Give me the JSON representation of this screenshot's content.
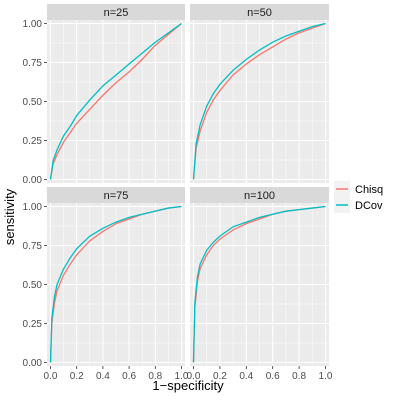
{
  "chart_data": {
    "type": "line",
    "xlabel": "1−specificity",
    "ylabel": "sensitivity",
    "xlim": [
      0,
      1
    ],
    "ylim": [
      0,
      1
    ],
    "x_ticks": [
      "0.0",
      "0.2",
      "0.4",
      "0.6",
      "0.8",
      "1.0"
    ],
    "y_ticks": [
      "0.00",
      "0.25",
      "0.50",
      "0.75",
      "1.00"
    ],
    "grid": true,
    "legend_position": "right",
    "legend": [
      {
        "name": "Chisq",
        "color": "#F8766D"
      },
      {
        "name": "DCov",
        "color": "#00BFC4"
      }
    ],
    "panels": [
      {
        "strip": "n=25",
        "series": [
          {
            "name": "Chisq",
            "x": [
              0,
              0.02,
              0.05,
              0.1,
              0.15,
              0.2,
              0.3,
              0.4,
              0.5,
              0.6,
              0.7,
              0.8,
              0.9,
              1.0
            ],
            "y": [
              0,
              0.1,
              0.16,
              0.24,
              0.3,
              0.36,
              0.45,
              0.54,
              0.62,
              0.69,
              0.77,
              0.86,
              0.93,
              1.0
            ]
          },
          {
            "name": "DCov",
            "x": [
              0,
              0.02,
              0.05,
              0.1,
              0.15,
              0.2,
              0.3,
              0.4,
              0.5,
              0.6,
              0.7,
              0.8,
              0.9,
              1.0
            ],
            "y": [
              0,
              0.12,
              0.19,
              0.28,
              0.34,
              0.41,
              0.51,
              0.6,
              0.67,
              0.74,
              0.81,
              0.88,
              0.94,
              1.0
            ]
          }
        ]
      },
      {
        "strip": "n=50",
        "series": [
          {
            "name": "Chisq",
            "x": [
              0,
              0.02,
              0.05,
              0.1,
              0.15,
              0.2,
              0.3,
              0.4,
              0.5,
              0.6,
              0.7,
              0.8,
              0.9,
              1.0
            ],
            "y": [
              0,
              0.2,
              0.31,
              0.43,
              0.51,
              0.57,
              0.67,
              0.74,
              0.8,
              0.85,
              0.9,
              0.94,
              0.97,
              1.0
            ]
          },
          {
            "name": "DCov",
            "x": [
              0,
              0.02,
              0.05,
              0.1,
              0.15,
              0.2,
              0.3,
              0.4,
              0.5,
              0.6,
              0.7,
              0.8,
              0.9,
              1.0
            ],
            "y": [
              0,
              0.23,
              0.35,
              0.47,
              0.55,
              0.61,
              0.7,
              0.77,
              0.83,
              0.88,
              0.92,
              0.95,
              0.98,
              1.0
            ]
          }
        ]
      },
      {
        "strip": "n=75",
        "series": [
          {
            "name": "Chisq",
            "x": [
              0,
              0.01,
              0.03,
              0.05,
              0.1,
              0.15,
              0.2,
              0.3,
              0.4,
              0.5,
              0.6,
              0.7,
              0.8,
              0.9,
              1.0
            ],
            "y": [
              0,
              0.25,
              0.38,
              0.46,
              0.56,
              0.63,
              0.69,
              0.78,
              0.84,
              0.89,
              0.92,
              0.95,
              0.97,
              0.99,
              1.0
            ]
          },
          {
            "name": "DCov",
            "x": [
              0,
              0.01,
              0.03,
              0.05,
              0.1,
              0.15,
              0.2,
              0.3,
              0.4,
              0.5,
              0.6,
              0.7,
              0.8,
              0.9,
              1.0
            ],
            "y": [
              0,
              0.28,
              0.42,
              0.5,
              0.6,
              0.67,
              0.73,
              0.81,
              0.86,
              0.9,
              0.93,
              0.95,
              0.97,
              0.99,
              1.0
            ]
          }
        ]
      },
      {
        "strip": "n=100",
        "series": [
          {
            "name": "Chisq",
            "x": [
              0,
              0.01,
              0.03,
              0.05,
              0.1,
              0.15,
              0.2,
              0.3,
              0.4,
              0.5,
              0.6,
              0.7,
              0.8,
              0.9,
              1.0
            ],
            "y": [
              0,
              0.35,
              0.52,
              0.6,
              0.69,
              0.75,
              0.79,
              0.85,
              0.89,
              0.92,
              0.95,
              0.97,
              0.98,
              0.99,
              1.0
            ]
          },
          {
            "name": "DCov",
            "x": [
              0,
              0.01,
              0.03,
              0.05,
              0.1,
              0.15,
              0.2,
              0.3,
              0.4,
              0.5,
              0.6,
              0.7,
              0.8,
              0.9,
              1.0
            ],
            "y": [
              0,
              0.38,
              0.55,
              0.63,
              0.72,
              0.77,
              0.81,
              0.87,
              0.9,
              0.93,
              0.95,
              0.97,
              0.98,
              0.99,
              1.0
            ]
          }
        ]
      }
    ]
  }
}
